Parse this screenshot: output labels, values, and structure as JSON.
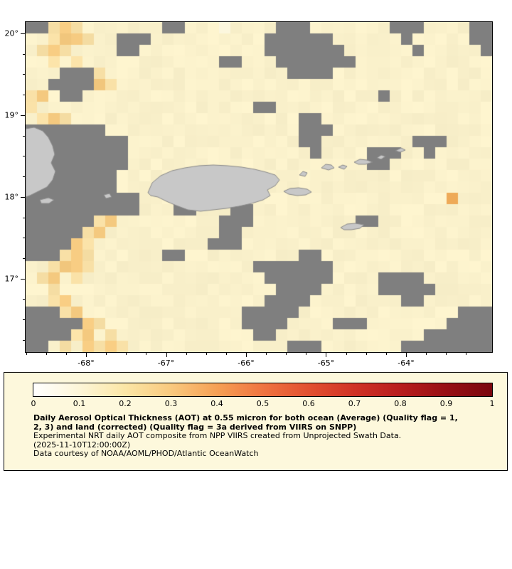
{
  "map": {
    "lon_min": -68.7556,
    "lon_max": -62.9244,
    "lat_min": 16.1043,
    "lat_max": 20.1391,
    "minor_tick_step": 0.25,
    "x_ticks": [
      {
        "value": -68,
        "label": "-68°"
      },
      {
        "value": -67,
        "label": "-67°"
      },
      {
        "value": -66,
        "label": "-66°"
      },
      {
        "value": -65,
        "label": "-65°"
      },
      {
        "value": -64,
        "label": "-64°"
      }
    ],
    "y_ticks": [
      {
        "value": 20,
        "label": "20°"
      },
      {
        "value": 19,
        "label": "19°"
      },
      {
        "value": 18,
        "label": "18°"
      },
      {
        "value": 17,
        "label": "17°"
      }
    ],
    "cell_size": 16,
    "palette": {
      ".": "#FAF1CB",
      ",": "#FCF7DE",
      "o": "#F8E0A6",
      "O": "#F5CA80",
      "X": "#F2AE5C",
      "#": "#7F7F7F"
    },
    "grid": [
      "##oOo.......##...,....###.......###....##",
      "..oOOo..###..........######......#.....##",
      ".oOo....##...........#######......#.....#",
      "..o.o............##...#######............",
      "...###o................####..............",
      "..####Oo.................................",
      "oO.##..........................#.........",
      "o...................##...................",
      ".oOo....................##...............",
      "#######.................###..............",
      "#########...............##........###....",
      "#########................#....###..#.....",
      "#########.....................##.........",
      "########.................................",
      "########.................................",
      "##########...........................X...",
      "##########...##...##.....................",
      "######oO.........###.........##..........",
      "#####oO..........##......................",
      "####Oo..........###......................",
      "###oOo......##..........##...............",
      "..oOOo..............#######..............",
      ".oO.o................######....####......",
      "..o...................####.....#####.....",
      "..oO.................####........##......",
      "###oO..............#####..............###",
      "#####Oo............####....###.......####",
      "####oO.o............##.............######",
      "##.o.OoOo..............###.......########"
    ],
    "land": {
      "fill": "#C8C8C8",
      "stroke": "#8A8A8A",
      "features": [
        {
          "name": "hispaniola-east",
          "points": [
            [
              0,
              150
            ],
            [
              12,
              148
            ],
            [
              24,
              153
            ],
            [
              32,
              162
            ],
            [
              38,
              174
            ],
            [
              41,
              186
            ],
            [
              36,
              198
            ],
            [
              42,
              210
            ],
            [
              38,
              222
            ],
            [
              30,
              232
            ],
            [
              18,
              238
            ],
            [
              6,
              244
            ],
            [
              0,
              246
            ]
          ]
        },
        {
          "name": "saona",
          "points": [
            [
              20,
              250
            ],
            [
              32,
              247
            ],
            [
              40,
              250
            ],
            [
              33,
              255
            ],
            [
              22,
              255
            ]
          ]
        },
        {
          "name": "mona",
          "points": [
            [
              110,
              243
            ],
            [
              118,
              241
            ],
            [
              121,
              246
            ],
            [
              113,
              248
            ]
          ]
        },
        {
          "name": "puerto-rico",
          "points": [
            [
              172,
              240
            ],
            [
              178,
              226
            ],
            [
              190,
              216
            ],
            [
              206,
              209
            ],
            [
              224,
              205
            ],
            [
              244,
              202
            ],
            [
              264,
              201
            ],
            [
              284,
              202
            ],
            [
              304,
              204
            ],
            [
              322,
              207
            ],
            [
              338,
              211
            ],
            [
              351,
              215
            ],
            [
              357,
              222
            ],
            [
              351,
              230
            ],
            [
              340,
              236
            ],
            [
              344,
              244
            ],
            [
              334,
              250
            ],
            [
              318,
              255
            ],
            [
              300,
              259
            ],
            [
              282,
              262
            ],
            [
              264,
              264
            ],
            [
              246,
              266
            ],
            [
              228,
              264
            ],
            [
              212,
              258
            ],
            [
              198,
              252
            ],
            [
              186,
              246
            ],
            [
              176,
              244
            ]
          ]
        },
        {
          "name": "vieques",
          "points": [
            [
              363,
              238
            ],
            [
              372,
              234
            ],
            [
              384,
              233
            ],
            [
              396,
              235
            ],
            [
              402,
              239
            ],
            [
              394,
              243
            ],
            [
              382,
              244
            ],
            [
              370,
              242
            ]
          ]
        },
        {
          "name": "culebra",
          "points": [
            [
              385,
              215
            ],
            [
              390,
              210
            ],
            [
              396,
              212
            ],
            [
              393,
              217
            ]
          ]
        },
        {
          "name": "st-thomas",
          "points": [
            [
              416,
              205
            ],
            [
              422,
              200
            ],
            [
              430,
              201
            ],
            [
              434,
              205
            ],
            [
              426,
              208
            ]
          ]
        },
        {
          "name": "st-john",
          "points": [
            [
              440,
              204
            ],
            [
              446,
              201
            ],
            [
              452,
              203
            ],
            [
              448,
              207
            ]
          ]
        },
        {
          "name": "tortola",
          "points": [
            [
              462,
              197
            ],
            [
              470,
              193
            ],
            [
              480,
              194
            ],
            [
              488,
              197
            ],
            [
              478,
              200
            ],
            [
              468,
              200
            ]
          ]
        },
        {
          "name": "virgin-gorda",
          "points": [
            [
              494,
              191
            ],
            [
              500,
              187
            ],
            [
              506,
              189
            ],
            [
              500,
              193
            ]
          ]
        },
        {
          "name": "anegada",
          "points": [
            [
              520,
              181
            ],
            [
              528,
              177
            ],
            [
              534,
              180
            ],
            [
              527,
              183
            ]
          ]
        },
        {
          "name": "st-croix",
          "points": [
            [
              443,
              289
            ],
            [
              452,
              284
            ],
            [
              464,
              283
            ],
            [
              476,
              285
            ],
            [
              470,
              290
            ],
            [
              458,
              292
            ],
            [
              448,
              292
            ]
          ]
        }
      ]
    }
  },
  "legend": {
    "colorbar": {
      "min": 0,
      "max": 1,
      "tick_labels": [
        "0",
        "0.1",
        "0.2",
        "0.3",
        "0.4",
        "0.5",
        "0.6",
        "0.7",
        "0.8",
        "0.9",
        "1"
      ],
      "gradient_stops": [
        {
          "at": 0.0,
          "color": "#FFFFFF"
        },
        {
          "at": 0.1,
          "color": "#FDF6D8"
        },
        {
          "at": 0.2,
          "color": "#FBE6A6"
        },
        {
          "at": 0.3,
          "color": "#F9C97E"
        },
        {
          "at": 0.4,
          "color": "#F6A055"
        },
        {
          "at": 0.5,
          "color": "#EF7440"
        },
        {
          "at": 0.6,
          "color": "#E25030"
        },
        {
          "at": 0.7,
          "color": "#D03226"
        },
        {
          "at": 0.8,
          "color": "#B81D1D"
        },
        {
          "at": 0.9,
          "color": "#970F14"
        },
        {
          "at": 1.0,
          "color": "#7A060E"
        }
      ]
    },
    "title_line1": "Daily Aerosol Optical Thickness (AOT) at 0.55 micron for both ocean (Average) (Quality flag = 1,",
    "title_line2": "2, 3) and land (corrected) (Quality flag = 3a derived from VIIRS on SNPP)",
    "subtitle": "Experimental NRT daily AOT composite from NPP VIIRS created from Unprojected Swath Data.",
    "timestamp": "(2025-11-10T12:00:00Z)",
    "credit": "Data courtesy of NOAA/AOML/PHOD/Atlantic OceanWatch"
  }
}
